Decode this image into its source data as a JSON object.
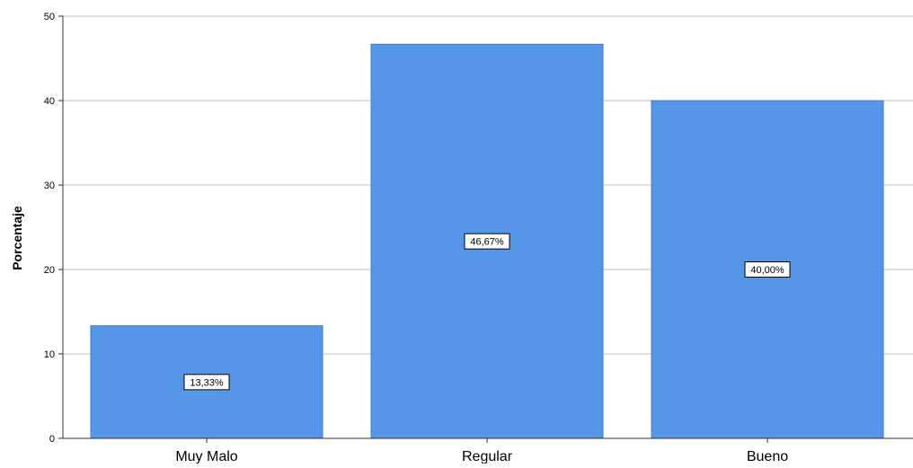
{
  "chart_data": {
    "type": "bar",
    "title": "",
    "xlabel": "",
    "ylabel": "Porcentaje",
    "categories": [
      "Muy Malo",
      "Regular",
      "Bueno"
    ],
    "values": [
      13.33,
      46.67,
      40.0
    ],
    "data_labels": [
      "13,33%",
      "46,67%",
      "40,00%"
    ],
    "ylim": [
      0,
      50
    ],
    "yticks": [
      0,
      10,
      20,
      30,
      40,
      50
    ],
    "ytick_labels": [
      "0",
      "10",
      "20",
      "30",
      "40",
      "50"
    ],
    "grid": "horizontal",
    "bar_color": "#5596e6",
    "bar_edge_color": "#3a7bd5",
    "grid_color": "#bdbdbd",
    "axis_color": "#333333"
  }
}
